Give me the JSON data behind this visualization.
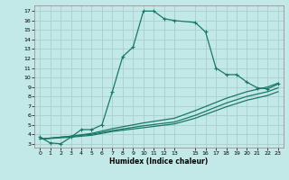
{
  "xlabel": "Humidex (Indice chaleur)",
  "background_color": "#c2e8e8",
  "grid_color": "#aacece",
  "line_color": "#1a7868",
  "xlim": [
    -0.5,
    23.5
  ],
  "ylim": [
    2.6,
    17.6
  ],
  "xticks": [
    0,
    1,
    2,
    3,
    4,
    5,
    6,
    7,
    8,
    9,
    10,
    11,
    12,
    13,
    15,
    16,
    17,
    18,
    19,
    20,
    21,
    22,
    23
  ],
  "yticks": [
    3,
    4,
    5,
    6,
    7,
    8,
    9,
    10,
    11,
    12,
    13,
    14,
    15,
    16,
    17
  ],
  "curve1_x": [
    0,
    1,
    2,
    3,
    4,
    5,
    6,
    7,
    8,
    9,
    10,
    11,
    12,
    13,
    15,
    16,
    17,
    18,
    19,
    20,
    21,
    22,
    23
  ],
  "curve1_y": [
    3.7,
    3.1,
    3.0,
    3.7,
    4.5,
    4.5,
    5.0,
    8.5,
    12.2,
    13.2,
    17.0,
    17.0,
    16.2,
    16.0,
    15.8,
    14.8,
    11.0,
    10.3,
    10.3,
    9.5,
    8.9,
    8.8,
    9.3
  ],
  "curve2_x": [
    0,
    3,
    5,
    7,
    10,
    13,
    15,
    18,
    20,
    22,
    23
  ],
  "curve2_y": [
    3.5,
    3.8,
    4.1,
    4.6,
    5.2,
    5.7,
    6.5,
    7.8,
    8.5,
    9.0,
    9.4
  ],
  "curve3_x": [
    0,
    3,
    5,
    7,
    10,
    13,
    15,
    18,
    20,
    22,
    23
  ],
  "curve3_y": [
    3.5,
    3.8,
    4.0,
    4.4,
    4.9,
    5.3,
    6.0,
    7.3,
    8.0,
    8.5,
    8.9
  ],
  "curve4_x": [
    0,
    3,
    5,
    7,
    10,
    13,
    15,
    18,
    20,
    22,
    23
  ],
  "curve4_y": [
    3.5,
    3.7,
    3.9,
    4.3,
    4.7,
    5.1,
    5.7,
    6.9,
    7.6,
    8.1,
    8.5
  ]
}
